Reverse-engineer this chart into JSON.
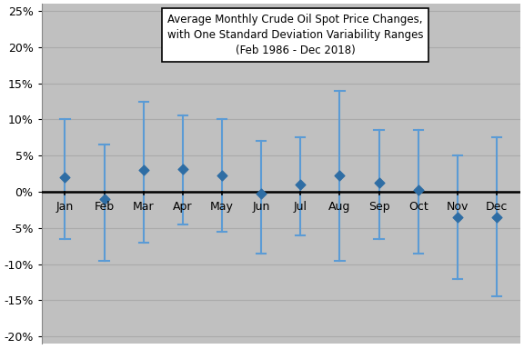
{
  "months": [
    "Jan",
    "Feb",
    "Mar",
    "Apr",
    "May",
    "Jun",
    "Jul",
    "Aug",
    "Sep",
    "Oct",
    "Nov",
    "Dec"
  ],
  "means": [
    2.0,
    -1.0,
    3.0,
    3.2,
    2.3,
    -0.3,
    1.0,
    2.3,
    1.3,
    0.2,
    -3.5,
    -3.5
  ],
  "upper": [
    10.0,
    6.5,
    12.5,
    10.5,
    10.0,
    7.0,
    7.5,
    14.0,
    8.5,
    8.5,
    5.0,
    7.5
  ],
  "lower": [
    -6.5,
    -9.5,
    -7.0,
    -4.5,
    -5.5,
    -8.5,
    -6.0,
    -9.5,
    -6.5,
    -8.5,
    -12.0,
    -14.5
  ],
  "title_line1": "Average Monthly Crude Oil Spot Price Changes,",
  "title_line2": "with One Standard Deviation Variability Ranges",
  "title_line3": "(Feb 1986 - Dec 2018)",
  "plot_bg_color": "#c0c0c0",
  "outer_bg_color": "#ffffff",
  "dot_color": "#2e6da4",
  "line_color": "#5b9bd5",
  "zero_line_color": "#000000",
  "grid_color": "#aaaaaa",
  "ylim_min": -21.0,
  "ylim_max": 26.0,
  "yticks": [
    -20,
    -15,
    -10,
    -5,
    0,
    5,
    10,
    15,
    20,
    25
  ]
}
